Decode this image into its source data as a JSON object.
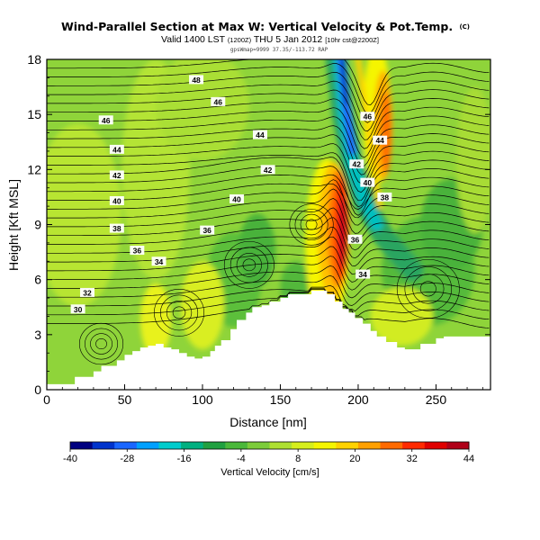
{
  "chart_data": {
    "type": "heatmap",
    "title": "Wind-Parallel Section at Max W: Vertical Velocity & Pot.Temp.",
    "title_mark": "(C)",
    "subtitle_main": "Valid 1400 LST",
    "subtitle_paren1": "(1200Z)",
    "subtitle_date": "THU 5 Jan 2012",
    "subtitle_paren2": "[10hr cst@2200Z]",
    "info_line": "gpsWmap=9999 37.35/-113.72 RAP",
    "xlabel": "Distance [nm]",
    "ylabel": "Height [Kft MSL]",
    "xlim": [
      0,
      285
    ],
    "ylim": [
      0,
      18
    ],
    "x_ticks": [
      "0",
      "50",
      "100",
      "150",
      "200",
      "250"
    ],
    "y_ticks": [
      "0",
      "3",
      "6",
      "9",
      "12",
      "15",
      "18"
    ],
    "colorbar": {
      "label": "Vertical Velocity [cm/s]",
      "ticks": [
        "-40",
        "-28",
        "-16",
        "-4",
        "8",
        "20",
        "32",
        "44"
      ],
      "range": [
        -40,
        44
      ],
      "colors": [
        "#000080",
        "#0033cc",
        "#1a66ff",
        "#00a0ff",
        "#00cccc",
        "#00b080",
        "#20a040",
        "#4ab83a",
        "#7ccc3a",
        "#aee032",
        "#d6ee1c",
        "#f5f500",
        "#ffd200",
        "#ffa000",
        "#ff6a00",
        "#ff2a00",
        "#e00000",
        "#b00018"
      ]
    },
    "terrain_kft": {
      "x": [
        0,
        10,
        18,
        30,
        35,
        45,
        50,
        55,
        60,
        65,
        70,
        75,
        80,
        85,
        90,
        95,
        100,
        105,
        108,
        112,
        118,
        122,
        128,
        132,
        138,
        143,
        150,
        155,
        160,
        165,
        170,
        176,
        180,
        185,
        190,
        194,
        198,
        203,
        208,
        212,
        218,
        225,
        230,
        240,
        250,
        255,
        270,
        285
      ],
      "y": [
        0.3,
        0.3,
        0.7,
        1.0,
        1.3,
        1.6,
        1.9,
        2.1,
        2.3,
        2.4,
        2.5,
        2.3,
        2.2,
        2.0,
        1.8,
        1.7,
        1.8,
        2.1,
        2.4,
        2.7,
        3.3,
        3.8,
        4.2,
        4.5,
        4.6,
        4.8,
        5.0,
        5.2,
        5.2,
        5.2,
        5.4,
        5.4,
        5.2,
        4.8,
        4.4,
        4.2,
        3.9,
        3.6,
        3.2,
        2.9,
        2.6,
        2.3,
        2.2,
        2.5,
        2.8,
        2.9,
        2.9,
        2.9
      ]
    },
    "theta_contours": [
      {
        "label": "30",
        "label_x": 20,
        "base_height_kft": 4.8,
        "label_height_kft": 4.4
      },
      {
        "label": "32",
        "label_x": 26,
        "base_height_kft": 5.6,
        "label_height_kft": 5.3
      },
      {
        "label": "34",
        "label_x": 72,
        "base_height_kft": 6.8,
        "label_height_kft": 7.0
      },
      {
        "label": "36",
        "label_x": 58,
        "base_height_kft": 7.4,
        "label_height_kft": 7.6
      },
      {
        "label": "38",
        "label_x": 45,
        "base_height_kft": 8.8,
        "label_height_kft": 8.8
      },
      {
        "label": "40",
        "label_x": 45,
        "base_height_kft": 10.2,
        "label_height_kft": 10.3
      },
      {
        "label": "42",
        "label_x": 45,
        "base_height_kft": 11.6,
        "label_height_kft": 11.7
      },
      {
        "label": "44",
        "label_x": 45,
        "base_height_kft": 13.1,
        "label_height_kft": 13.1
      },
      {
        "label": "46",
        "label_x": 38,
        "base_height_kft": 14.8,
        "label_height_kft": 14.7
      },
      {
        "label": "48",
        "label_x": 96,
        "base_height_kft": 16.8,
        "label_height_kft": 16.9
      }
    ],
    "theta_labels_extra": [
      {
        "label": "36",
        "x": 103,
        "y": 8.7
      },
      {
        "label": "40",
        "x": 122,
        "y": 10.4
      },
      {
        "label": "42",
        "x": 142,
        "y": 12.0
      },
      {
        "label": "44",
        "x": 137,
        "y": 13.9
      },
      {
        "label": "46",
        "x": 110,
        "y": 15.7
      },
      {
        "label": "46",
        "x": 206,
        "y": 14.9
      },
      {
        "label": "44",
        "x": 214,
        "y": 13.6
      },
      {
        "label": "42",
        "x": 199,
        "y": 12.3
      },
      {
        "label": "40",
        "x": 206,
        "y": 11.3
      },
      {
        "label": "38",
        "x": 217,
        "y": 10.5
      },
      {
        "label": "36",
        "x": 198,
        "y": 8.2
      },
      {
        "label": "34",
        "x": 203,
        "y": 6.3
      }
    ],
    "vv_features": [
      {
        "kind": "updraft",
        "peak_cm_s": 44,
        "x": 188,
        "y": 8.5
      },
      {
        "kind": "downdraft",
        "peak_cm_s": -40,
        "x": 193,
        "y": 15.5
      },
      {
        "kind": "updraft",
        "peak_cm_s": 26,
        "x": 218,
        "y": 14.0
      }
    ]
  }
}
